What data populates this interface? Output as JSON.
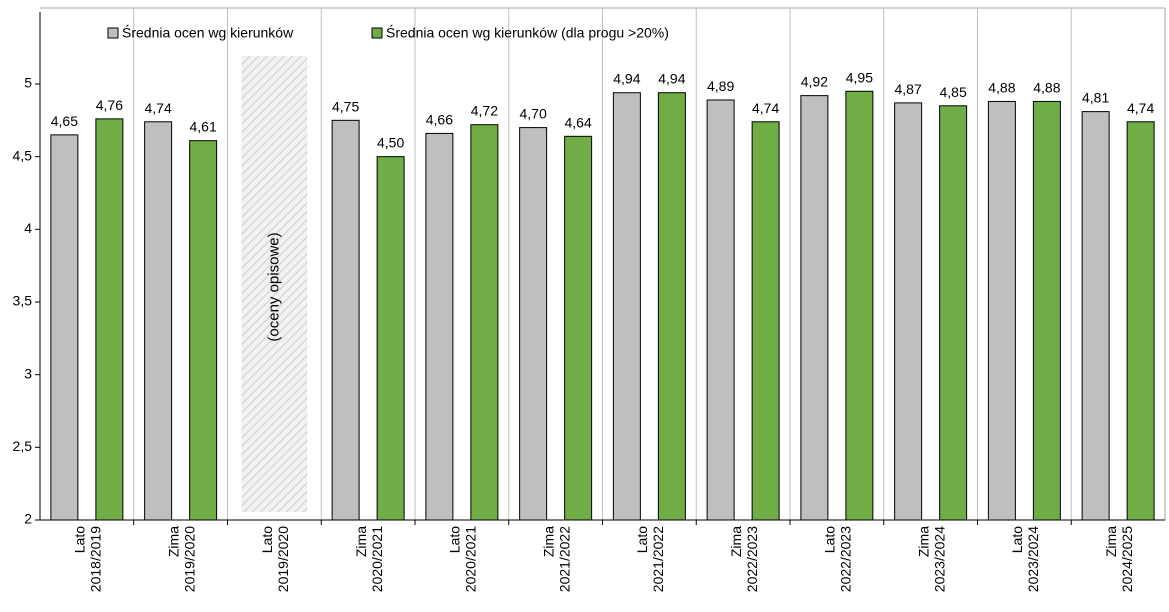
{
  "chart_data": {
    "type": "bar",
    "categories": [
      {
        "term": "Lato",
        "year": "2018/2019"
      },
      {
        "term": "Zima",
        "year": "2019/2020"
      },
      {
        "term": "Lato",
        "year": "2019/2020"
      },
      {
        "term": "Zima",
        "year": "2020/2021"
      },
      {
        "term": "Lato",
        "year": "2020/2021"
      },
      {
        "term": "Zima",
        "year": "2021/2022"
      },
      {
        "term": "Lato",
        "year": "2021/2022"
      },
      {
        "term": "Zima",
        "year": "2022/2023"
      },
      {
        "term": "Lato",
        "year": "2022/2023"
      },
      {
        "term": "Zima",
        "year": "2023/2024"
      },
      {
        "term": "Lato",
        "year": "2023/2024"
      },
      {
        "term": "Zima",
        "year": "2024/2025"
      }
    ],
    "series": [
      {
        "name": "Średnia ocen wg kierunków",
        "color": "#bfbfbf",
        "values": [
          4.65,
          4.74,
          null,
          4.75,
          4.66,
          4.7,
          4.94,
          4.89,
          4.92,
          4.87,
          4.88,
          4.81
        ],
        "labels": [
          "4,65",
          "4,74",
          "",
          "4,75",
          "4,66",
          "4,70",
          "4,94",
          "4,89",
          "4,92",
          "4,87",
          "4,88",
          "4,81"
        ]
      },
      {
        "name": "Średnia ocen wg kierunków (dla progu >20%)",
        "color": "#70ad47",
        "values": [
          4.76,
          4.61,
          null,
          4.5,
          4.72,
          4.64,
          4.94,
          4.74,
          4.95,
          4.85,
          4.88,
          4.74
        ],
        "labels": [
          "4,76",
          "4,61",
          "",
          "4,50",
          "4,72",
          "4,64",
          "4,94",
          "4,74",
          "4,95",
          "4,85",
          "4,88",
          "4,74"
        ]
      }
    ],
    "annotation": {
      "category_index": 2,
      "text": "(oceny opisowe)",
      "pattern": "diagonal-hatch"
    },
    "ylim": [
      2,
      5.3
    ],
    "yticks": [
      2,
      2.5,
      3,
      3.5,
      4,
      4.5,
      5
    ],
    "ytick_labels": [
      "2",
      "2,5",
      "3",
      "3,5",
      "4",
      "4,5",
      "5"
    ],
    "title": "",
    "xlabel": "",
    "ylabel": "",
    "legend_position": "top-left",
    "grid": "vertical category separators only"
  }
}
